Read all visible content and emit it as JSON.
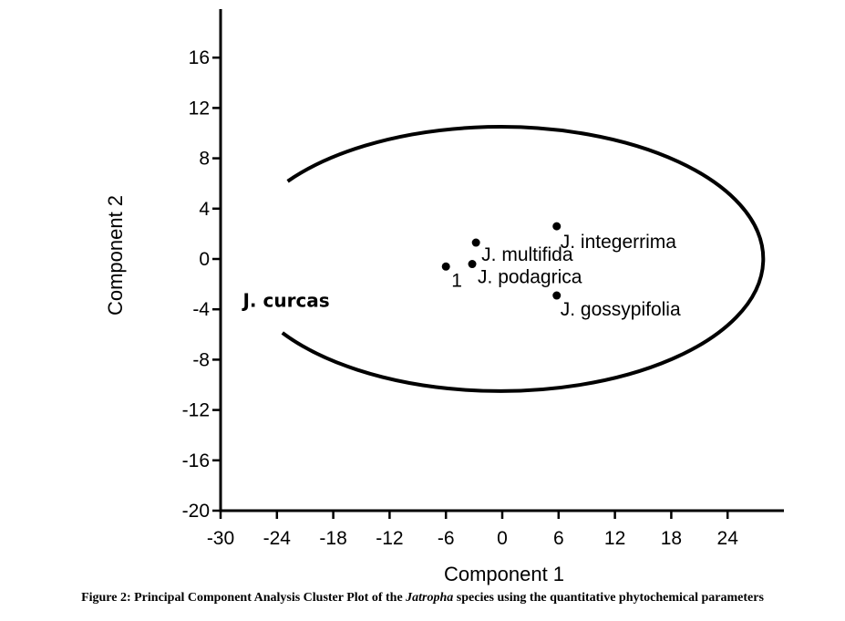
{
  "chart_data": {
    "type": "scatter",
    "title": "",
    "xlabel": "Component 1",
    "ylabel": "Component 2",
    "xlim": [
      -30,
      30
    ],
    "ylim": [
      -20,
      20
    ],
    "x_ticks": [
      -30,
      -24,
      -18,
      -12,
      -6,
      0,
      6,
      12,
      18,
      24
    ],
    "y_ticks": [
      -20,
      -16,
      -12,
      -8,
      -4,
      0,
      4,
      8,
      12,
      16
    ],
    "grid": false,
    "points": [
      {
        "label": "J. integerrima",
        "x": 5.8,
        "y": 2.6
      },
      {
        "label": "J. multifida",
        "x": -2.8,
        "y": 1.3
      },
      {
        "label": "J. podagrica",
        "x": -3.2,
        "y": -0.4
      },
      {
        "label": "1",
        "x": -6.0,
        "y": -0.6
      },
      {
        "label": "J. gossypifolia",
        "x": 5.8,
        "y": -2.9
      }
    ],
    "cluster": {
      "label": "J. curcas",
      "cx": -0.2,
      "cy": 0,
      "rx": 28,
      "ry": 10.5
    }
  },
  "caption": {
    "prefix": "Figure 2: Principal Component Analysis Cluster Plot of the ",
    "italic": "Jatropha",
    "suffix": " species using the quantitative phytochemical parameters"
  }
}
